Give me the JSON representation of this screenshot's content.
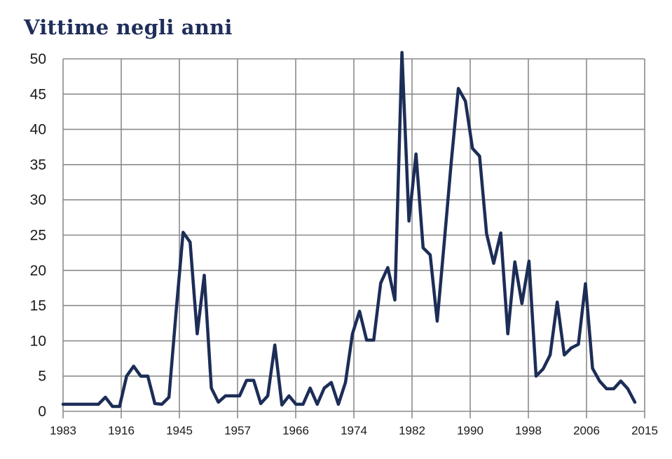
{
  "chart_data": {
    "type": "line",
    "title": "Vittime negli anni",
    "xlabel": "",
    "ylabel": "",
    "ylim": [
      0,
      50
    ],
    "yticks": [
      0,
      5,
      10,
      15,
      20,
      25,
      30,
      35,
      40,
      45,
      50
    ],
    "xticks": [
      "1983",
      "1916",
      "1945",
      "1957",
      "1966",
      "1974",
      "1982",
      "1990",
      "1998",
      "2006",
      "2015"
    ],
    "grid": true,
    "legend": "none",
    "line_color": "#1c2d57",
    "values": [
      1,
      1,
      1,
      1,
      1,
      1,
      2,
      0.7,
      0.7,
      5,
      6.4,
      5,
      5,
      1.1,
      1,
      2,
      14,
      25.4,
      24,
      11,
      19.3,
      3.3,
      1.3,
      2.2,
      2.2,
      2.2,
      4.4,
      4.4,
      1.1,
      2.2,
      9.4,
      0.9,
      2.2,
      1,
      1,
      3.3,
      1,
      3.3,
      4.1,
      1,
      4.1,
      11,
      14.2,
      10.1,
      10.1,
      18.2,
      20.4,
      15.8,
      50.9,
      27,
      36.5,
      23.2,
      22.2,
      12.8,
      24,
      35.5,
      45.8,
      44,
      37.3,
      36.2,
      25.2,
      21,
      25.3,
      11,
      21.2,
      15.3,
      21.3,
      5,
      6,
      8,
      15.5,
      8,
      9,
      9.5,
      18.1,
      6.1,
      4.3,
      3.2,
      3.2,
      4.3,
      3.2,
      1.3
    ]
  }
}
